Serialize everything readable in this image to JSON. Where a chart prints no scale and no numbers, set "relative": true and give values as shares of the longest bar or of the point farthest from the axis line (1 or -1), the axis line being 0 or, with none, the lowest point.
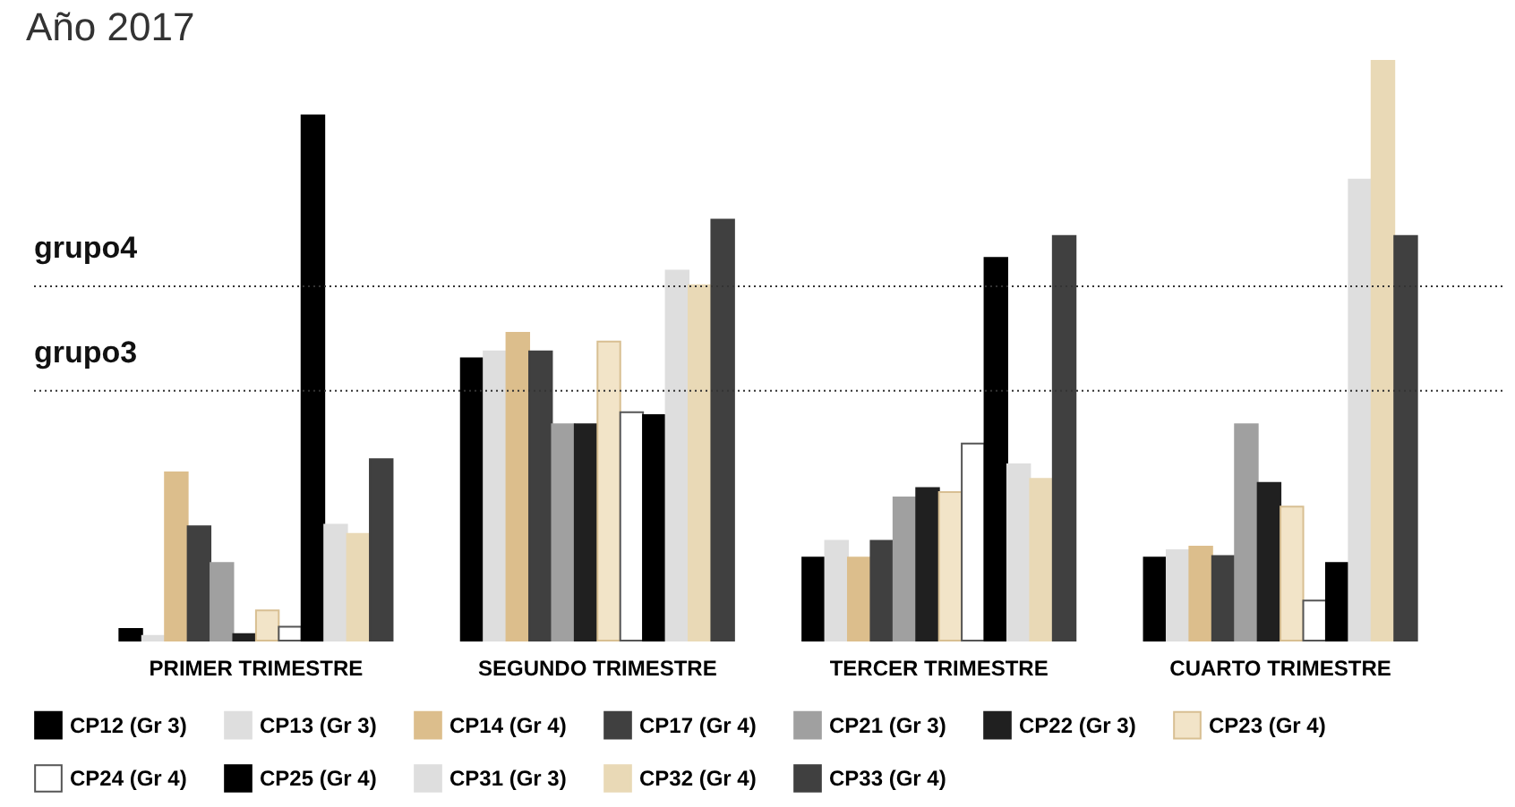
{
  "chart_data": {
    "type": "bar",
    "title": "Año 2017",
    "relative": true,
    "legend": "bottom",
    "categories": [
      "PRIMER TRIMESTRE",
      "SEGUNDO TRIMESTRE",
      "TERCER TRIMESTRE",
      "CUARTO TRIMESTRE"
    ],
    "series": [
      {
        "name": "CP12 (Gr 3)",
        "color": "#000000",
        "values": [
          0.02,
          0.487,
          0.143,
          0.143
        ]
      },
      {
        "name": "CP13 (Gr 3)",
        "color": "#dedede",
        "values": [
          0.008,
          0.499,
          0.172,
          0.156
        ]
      },
      {
        "name": "CP14 (Gr 4)",
        "color": "#dcbe8c",
        "values": [
          0.29,
          0.531,
          0.143,
          0.162
        ]
      },
      {
        "name": "CP17 (Gr 4)",
        "color": "#404040",
        "values": [
          0.197,
          0.499,
          0.172,
          0.146
        ]
      },
      {
        "name": "CP21 (Gr 3)",
        "color": "#a0a0a0",
        "values": [
          0.134,
          0.373,
          0.247,
          0.373
        ]
      },
      {
        "name": "CP22 (Gr 3)",
        "color": "#202020",
        "values": [
          0.011,
          0.373,
          0.263,
          0.272
        ]
      },
      {
        "name": "CP23 (Gr 4)",
        "color": "#f2e4c8",
        "values": [
          0.052,
          0.516,
          0.256,
          0.231
        ]
      },
      {
        "name": "CP24 (Gr 4)",
        "color": "#ffffff",
        "values": [
          0.024,
          0.394,
          0.34,
          0.069
        ]
      },
      {
        "name": "CP25 (Gr 4)",
        "color": "#000000",
        "values": [
          0.906,
          0.389,
          0.66,
          0.134
        ]
      },
      {
        "name": "CP31 (Gr 3)",
        "color": "#dedede",
        "values": [
          0.2,
          0.638,
          0.304,
          0.795
        ]
      },
      {
        "name": "CP32 (Gr 4)",
        "color": "#e9d9b6",
        "values": [
          0.184,
          0.613,
          0.279,
          1.0
        ]
      },
      {
        "name": "CP33 (Gr 4)",
        "color": "#404040",
        "values": [
          0.313,
          0.726,
          0.698,
          0.698
        ]
      }
    ],
    "ref_lines": [
      {
        "axis": "y",
        "value": 0.611,
        "label": "grupo4",
        "line_style": "dotted",
        "color": "#333333"
      },
      {
        "axis": "y",
        "value": 0.431,
        "label": "grupo3",
        "line_style": "dotted",
        "color": "#333333"
      }
    ]
  }
}
